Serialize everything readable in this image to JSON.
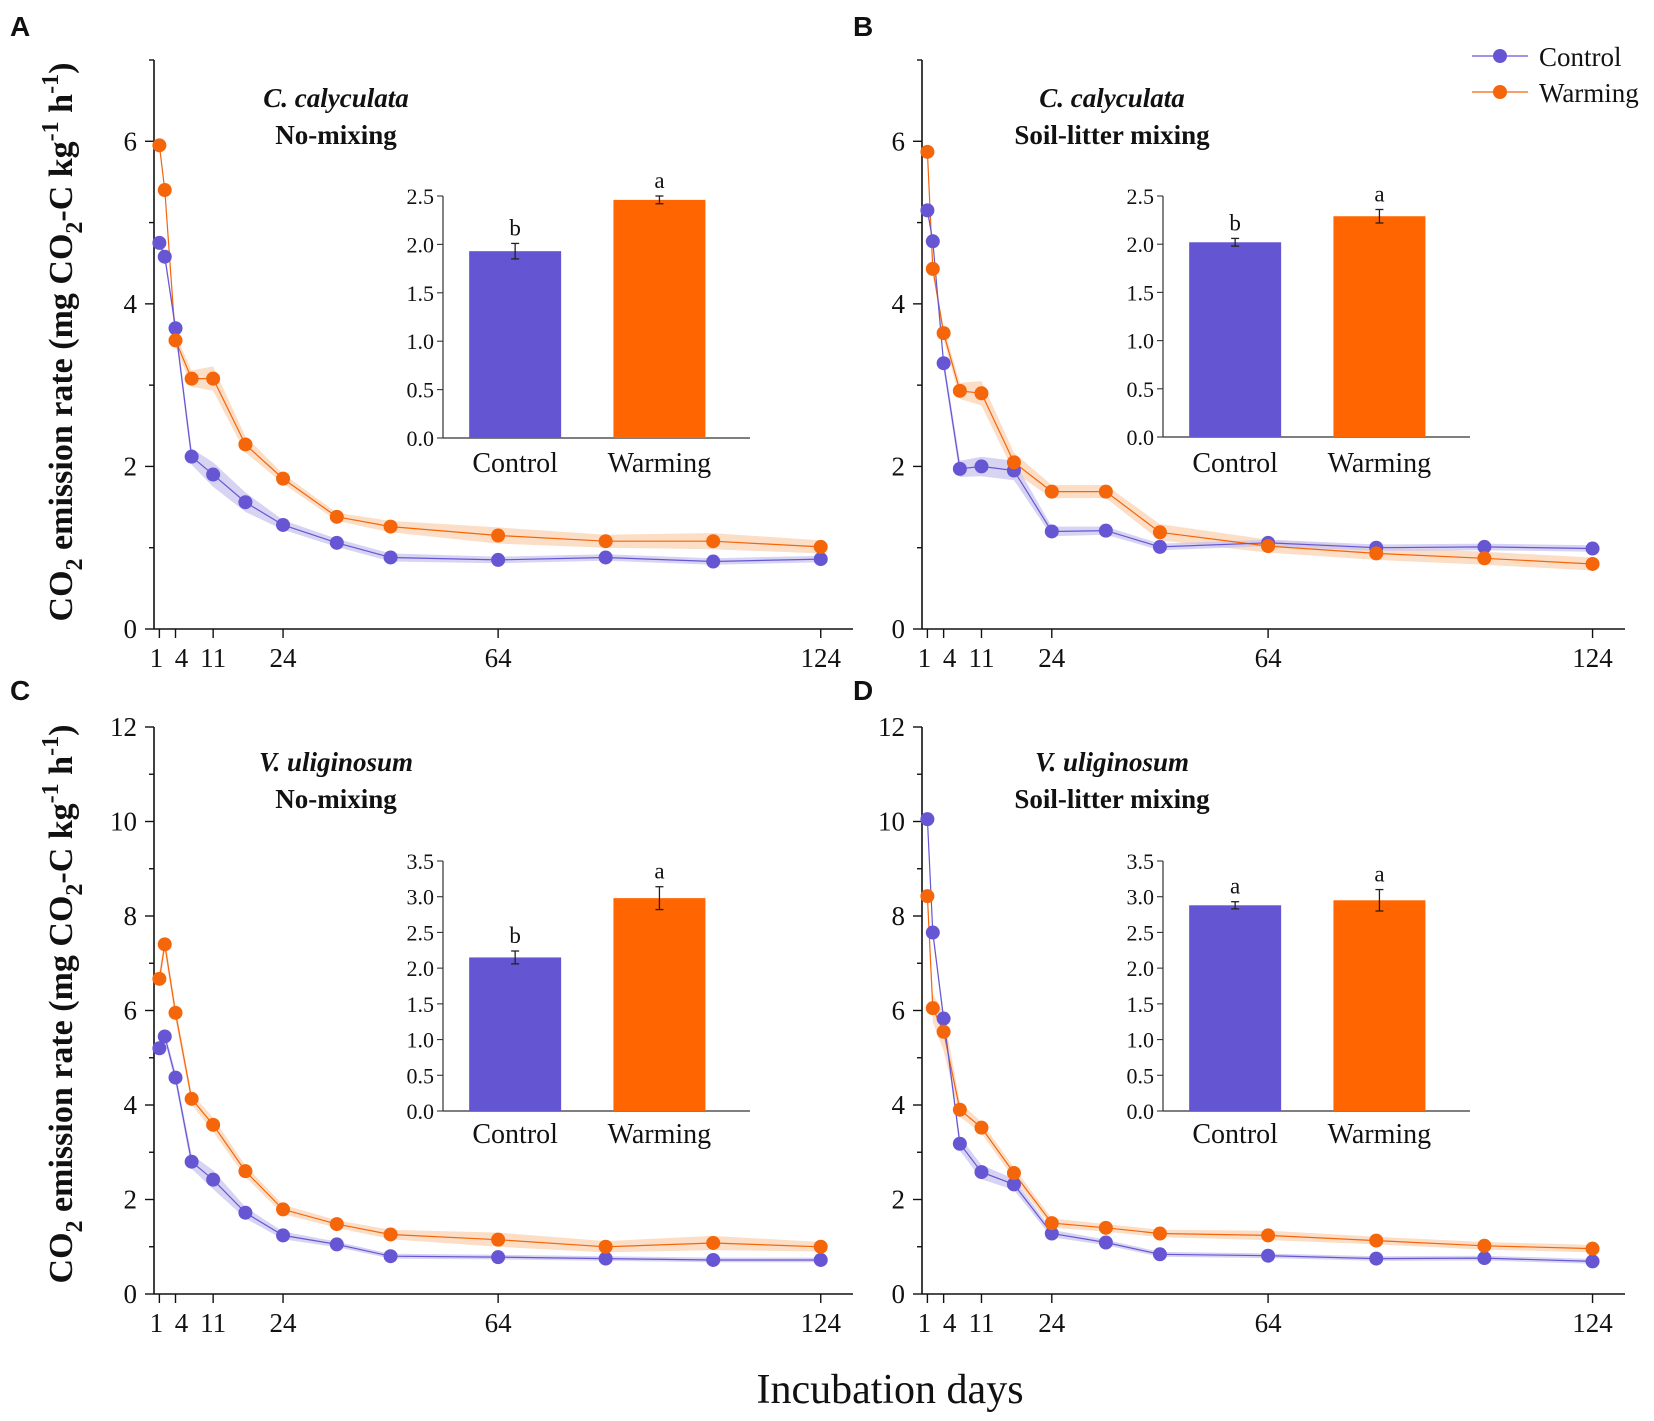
{
  "xlabel": "Incubation days",
  "ylabel": "CO2 emission rate (mg CO2-C kg-1 h-1)",
  "ylabel_parts": {
    "a": "CO",
    "sub": "2",
    "b": " emission rate (mg CO",
    "c": "-C kg",
    "sup1": "-1",
    "d": " h",
    "sup2": "-1",
    "e": ")"
  },
  "legend": [
    {
      "name": "Control",
      "color": "#6656d3"
    },
    {
      "name": "Warming",
      "color": "#f5650a"
    }
  ],
  "colors": {
    "control": "#6656d3",
    "warming": "#f5650a",
    "control_band": "#c9c4ef",
    "warming_band": "#f9d3b1",
    "bar_control": "#6456d2",
    "bar_warming": "#ff6500"
  },
  "chart_data": [
    {
      "panel": "A",
      "type": "line",
      "title_species": "C. calyculata",
      "title_treatment": "No-mixing",
      "xlim": [
        0,
        130
      ],
      "ylim": [
        0,
        7
      ],
      "xticks": [
        1,
        4,
        11,
        24,
        64,
        124
      ],
      "xtick_labels": [
        "1",
        "4",
        "11",
        "24",
        "64",
        "124"
      ],
      "yticks": [
        0,
        2,
        4,
        6
      ],
      "ytick_labels": [
        "0",
        "2",
        "4",
        "6"
      ],
      "x": [
        1,
        2,
        4,
        7,
        11,
        17,
        24,
        34,
        44,
        64,
        84,
        104,
        124
      ],
      "series": [
        {
          "name": "Control",
          "values": [
            4.75,
            4.58,
            3.7,
            2.12,
            1.9,
            1.56,
            1.28,
            1.06,
            0.88,
            0.85,
            0.88,
            0.83,
            0.86
          ],
          "err": [
            0.05,
            0.05,
            0.08,
            0.1,
            0.15,
            0.12,
            0.06,
            0.05,
            0.05,
            0.04,
            0.04,
            0.04,
            0.04
          ]
        },
        {
          "name": "Warming",
          "values": [
            5.95,
            5.4,
            3.55,
            3.08,
            3.08,
            2.27,
            1.85,
            1.38,
            1.26,
            1.15,
            1.08,
            1.08,
            1.01
          ],
          "err": [
            0.05,
            0.06,
            0.08,
            0.1,
            0.15,
            0.1,
            0.06,
            0.05,
            0.07,
            0.1,
            0.08,
            0.1,
            0.08
          ]
        }
      ],
      "inset": {
        "categories": [
          "Control",
          "Warming"
        ],
        "values": [
          1.93,
          2.46
        ],
        "errors": [
          0.08,
          0.04
        ],
        "labels": [
          "b",
          "a"
        ],
        "ylim": [
          0,
          2.5
        ],
        "yticks": [
          "0.0",
          "0.5",
          "1.0",
          "1.5",
          "2.0",
          "2.5"
        ]
      }
    },
    {
      "panel": "B",
      "type": "line",
      "title_species": "C. calyculata",
      "title_treatment": "Soil-litter mixing",
      "xlim": [
        0,
        130
      ],
      "ylim": [
        0,
        7
      ],
      "xticks": [
        1,
        4,
        11,
        24,
        64,
        124
      ],
      "xtick_labels": [
        "1",
        "4",
        "11",
        "24",
        "64",
        "124"
      ],
      "yticks": [
        0,
        2,
        4,
        6
      ],
      "ytick_labels": [
        "0",
        "2",
        "4",
        "6"
      ],
      "x": [
        1,
        2,
        4,
        7,
        11,
        17,
        24,
        34,
        44,
        64,
        84,
        104,
        124
      ],
      "series": [
        {
          "name": "Control",
          "values": [
            5.15,
            4.77,
            3.27,
            1.97,
            2.0,
            1.95,
            1.2,
            1.21,
            1.01,
            1.06,
            1.0,
            1.01,
            0.99
          ],
          "err": [
            0.05,
            0.05,
            0.08,
            0.1,
            0.12,
            0.12,
            0.06,
            0.05,
            0.04,
            0.04,
            0.04,
            0.04,
            0.04
          ]
        },
        {
          "name": "Warming",
          "values": [
            5.87,
            4.43,
            3.64,
            2.93,
            2.9,
            2.05,
            1.69,
            1.69,
            1.19,
            1.02,
            0.93,
            0.87,
            0.8
          ],
          "err": [
            0.05,
            0.06,
            0.08,
            0.1,
            0.15,
            0.12,
            0.08,
            0.08,
            0.1,
            0.08,
            0.08,
            0.08,
            0.08
          ]
        }
      ],
      "inset": {
        "categories": [
          "Control",
          "Warming"
        ],
        "values": [
          2.02,
          2.29
        ],
        "errors": [
          0.04,
          0.07
        ],
        "labels": [
          "b",
          "a"
        ],
        "ylim": [
          0,
          2.5
        ],
        "yticks": [
          "0.0",
          "0.5",
          "1.0",
          "1.5",
          "2.0",
          "2.5"
        ]
      }
    },
    {
      "panel": "C",
      "type": "line",
      "title_species": "V. uliginosum",
      "title_treatment": "No-mixing",
      "xlim": [
        0,
        130
      ],
      "ylim": [
        0,
        12
      ],
      "xticks": [
        1,
        4,
        11,
        24,
        64,
        124
      ],
      "xtick_labels": [
        "1",
        "4",
        "11",
        "24",
        "64",
        "124"
      ],
      "yticks": [
        0,
        2,
        4,
        6,
        8,
        10,
        12
      ],
      "ytick_labels": [
        "0",
        "2",
        "4",
        "6",
        "8",
        "10",
        "12"
      ],
      "x": [
        1,
        2,
        4,
        7,
        11,
        17,
        24,
        34,
        44,
        64,
        84,
        104,
        124
      ],
      "series": [
        {
          "name": "Control",
          "values": [
            5.2,
            5.45,
            4.58,
            2.8,
            2.42,
            1.72,
            1.24,
            1.05,
            0.8,
            0.78,
            0.75,
            0.72,
            0.72
          ],
          "err": [
            0.1,
            0.1,
            0.12,
            0.15,
            0.2,
            0.12,
            0.08,
            0.06,
            0.05,
            0.05,
            0.05,
            0.05,
            0.05
          ]
        },
        {
          "name": "Warming",
          "values": [
            6.67,
            7.4,
            5.95,
            4.13,
            3.58,
            2.6,
            1.79,
            1.48,
            1.26,
            1.15,
            1.0,
            1.08,
            1.0
          ],
          "err": [
            0.15,
            0.15,
            0.15,
            0.12,
            0.15,
            0.12,
            0.1,
            0.08,
            0.1,
            0.15,
            0.12,
            0.15,
            0.1
          ]
        }
      ],
      "inset": {
        "categories": [
          "Control",
          "Warming"
        ],
        "values": [
          2.15,
          2.98
        ],
        "errors": [
          0.09,
          0.16
        ],
        "labels": [
          "b",
          "a"
        ],
        "ylim": [
          0,
          3.5
        ],
        "yticks": [
          "0.0",
          "0.5",
          "1.0",
          "1.5",
          "2.0",
          "2.5",
          "3.0",
          "3.5"
        ]
      }
    },
    {
      "panel": "D",
      "type": "line",
      "title_species": "V. uliginosum",
      "title_treatment": "Soil-litter mixing",
      "xlim": [
        0,
        130
      ],
      "ylim": [
        0,
        12
      ],
      "xticks": [
        1,
        4,
        11,
        24,
        64,
        124
      ],
      "xtick_labels": [
        "1",
        "4",
        "11",
        "24",
        "64",
        "124"
      ],
      "yticks": [
        0,
        2,
        4,
        6,
        8,
        10,
        12
      ],
      "ytick_labels": [
        "0",
        "2",
        "4",
        "6",
        "8",
        "10",
        "12"
      ],
      "x": [
        1,
        2,
        4,
        7,
        11,
        17,
        24,
        34,
        44,
        64,
        84,
        104,
        124
      ],
      "series": [
        {
          "name": "Control",
          "values": [
            10.05,
            7.65,
            5.83,
            3.18,
            2.58,
            2.32,
            1.28,
            1.09,
            0.84,
            0.81,
            0.75,
            0.76,
            0.69
          ],
          "err": [
            0.1,
            0.1,
            0.12,
            0.15,
            0.15,
            0.12,
            0.08,
            0.06,
            0.05,
            0.05,
            0.05,
            0.05,
            0.05
          ]
        },
        {
          "name": "Warming",
          "values": [
            8.42,
            6.05,
            5.55,
            3.9,
            3.52,
            2.56,
            1.5,
            1.4,
            1.28,
            1.24,
            1.13,
            1.02,
            0.96
          ],
          "err": [
            0.15,
            0.3,
            0.4,
            0.15,
            0.12,
            0.12,
            0.1,
            0.08,
            0.08,
            0.1,
            0.08,
            0.08,
            0.08
          ]
        }
      ],
      "inset": {
        "categories": [
          "Control",
          "Warming"
        ],
        "values": [
          2.88,
          2.95
        ],
        "errors": [
          0.05,
          0.15
        ],
        "labels": [
          "a",
          "a"
        ],
        "ylim": [
          0,
          3.5
        ],
        "yticks": [
          "0.0",
          "0.5",
          "1.0",
          "1.5",
          "2.0",
          "2.5",
          "3.0",
          "3.5"
        ]
      }
    }
  ]
}
